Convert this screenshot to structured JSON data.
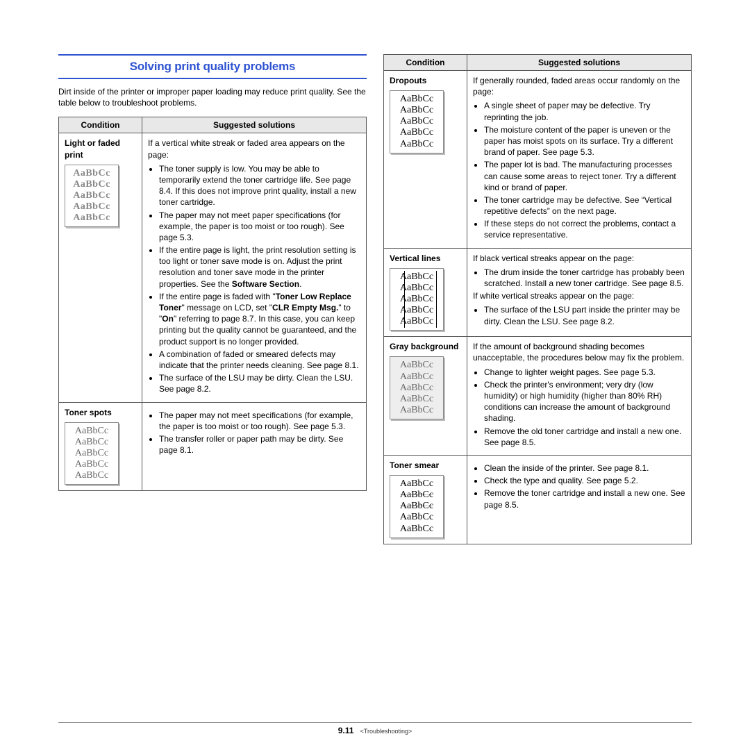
{
  "heading": "Solving print quality problems",
  "intro": "Dirt inside of the printer or improper paper loading may reduce print quality. See the table below to troubleshoot problems.",
  "table_headers": {
    "condition": "Condition",
    "solutions": "Suggested solutions"
  },
  "sample_text": "AaBbCc",
  "left_rows": [
    {
      "condition": "Light or faded print",
      "lead": "If a vertical white streak or faded area appears on the page:",
      "bullets": [
        "The toner supply is low. You may be able to temporarily extend the toner cartridge life. See page 8.4. If this does not improve print quality, install a new toner cartridge.",
        "The paper may not meet paper specifications (for example, the paper is too moist or too rough). See page 5.3.",
        "If the entire page is light, the print resolution setting is too light or toner save mode is on. Adjust the print resolution and toner save mode in the printer properties. See the <b>Software Section</b>.",
        "If the entire page is faded with \"<b>Toner Low Replace Toner</b>\" message on LCD, set \"<b>CLR Empty Msg.</b>\" to \"<b>On</b>\" referring to page 8.7. In this case, you can keep printing but the quality cannot be guaranteed, and the product support is no longer provided.",
        "A combination of faded or smeared defects may indicate that the printer needs cleaning. See page 8.1.",
        "The surface of the LSU may be dirty. Clean the LSU. See page 8.2."
      ]
    },
    {
      "condition": "Toner spots",
      "bullets": [
        "The paper may not meet specifications (for example, the paper is too moist or too rough). See page 5.3.",
        "The transfer roller or paper path may be dirty. See page 8.1."
      ]
    }
  ],
  "right_rows": [
    {
      "condition": "Dropouts",
      "lead": "If generally rounded, faded areas occur randomly on the page:",
      "bullets": [
        "A single sheet of paper may be defective. Try reprinting the job.",
        "The moisture content of the paper is uneven or the paper has moist spots on its surface. Try a different brand of paper. See page 5.3.",
        "The paper lot is bad. The manufacturing processes can cause some areas to reject toner. Try a different kind or brand of paper.",
        "The toner cartridge may be defective. See “Vertical repetitive defects” on the next page.",
        "If these steps do not correct the problems, contact a service representative."
      ]
    },
    {
      "condition": "Vertical lines",
      "segments": [
        {
          "lead": "If black vertical streaks appear on the page:",
          "bullets": [
            "The drum inside the toner cartridge has probably been scratched. Install a new toner cartridge. See page 8.5."
          ]
        },
        {
          "lead": "If white vertical streaks appear on the page:",
          "bullets": [
            "The surface of the LSU part inside the printer may be dirty. Clean the LSU. See page 8.2."
          ]
        }
      ]
    },
    {
      "condition": "Gray background",
      "lead": "If the amount of background shading becomes unacceptable, the procedures below may fix the problem.",
      "bullets": [
        "Change to lighter weight pages. See page 5.3.",
        "Check the printer's environment; very dry (low humidity) or high humidity (higher than 80% RH) conditions can increase the amount of background shading.",
        "Remove the old toner cartridge and install a new one. See page 8.5."
      ]
    },
    {
      "condition": "Toner smear",
      "bullets": [
        "Clean the inside of the printer. See page 8.1.",
        "Check the type and quality. See page 5.2.",
        "Remove the toner cartridge and install a new one. See page 8.5."
      ]
    }
  ],
  "footer": {
    "page": "9.11",
    "section": "<Troubleshooting>"
  },
  "colors": {
    "accent": "#2e53d1",
    "header_bg": "#e8e8e8",
    "border": "#555555",
    "text": "#000000"
  }
}
